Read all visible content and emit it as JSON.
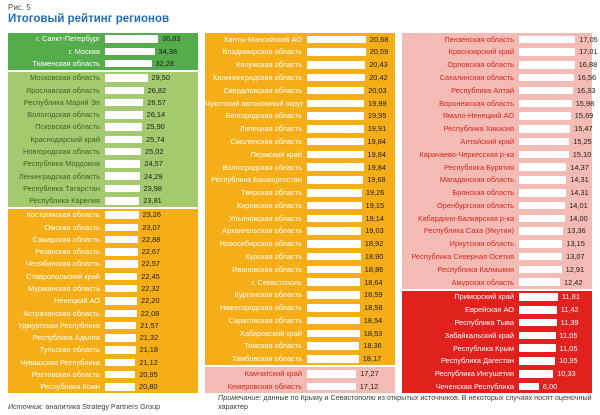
{
  "figure_label": "Рис. 5",
  "title": "Итоговый рейтинг регионов",
  "footer": {
    "source_label": "Источник:",
    "source_text": " аналитика Strategy Partners Group",
    "note_label": "Примечание:",
    "note_text": " данные по Крыму и Севастополю  из открытых источников.  В некоторых случаях  носят оценочный характер"
  },
  "colors": {
    "title_blue": "#1e6fb8",
    "tier_dark_green": "#55ac4b",
    "tier_light_green": "#a4ca70",
    "tier_orange": "#f5ae17",
    "tier_pink": "#f4bab4",
    "tier_red": "#e0211e",
    "bar_fill": "#ffffff",
    "pink_label_red": "#d5281e"
  },
  "chart_data": {
    "type": "bar",
    "title": "Итоговый рейтинг регионов",
    "orientation": "horizontal",
    "value_format": "comma-decimal",
    "tiers_legend": [
      "dark-green",
      "light-green",
      "orange",
      "pink",
      "red"
    ],
    "columns": [
      {
        "label_width": 92,
        "bar_scale": 1.44,
        "groups": [
          {
            "tier": "dark-green",
            "rows": [
              {
                "name": "г. Санкт-Петербург",
                "value": "36,83"
              },
              {
                "name": "г. Москва",
                "value": "34,38"
              },
              {
                "name": "Тюменская область",
                "value": "32,28"
              }
            ]
          },
          {
            "tier": "light-green",
            "rows": [
              {
                "name": "Московская область",
                "value": "29,50"
              },
              {
                "name": "Ярославская область",
                "value": "26,82"
              },
              {
                "name": "Республика Марий Эл",
                "value": "26,57"
              },
              {
                "name": "Вологодская область",
                "value": "26,14"
              },
              {
                "name": "Псковская область",
                "value": "25,90"
              },
              {
                "name": "Краснодарский край",
                "value": "25,74"
              },
              {
                "name": "Новгородская область",
                "value": "25,02"
              },
              {
                "name": "Республика Мордовия",
                "value": "24,57"
              },
              {
                "name": "Ленинградская область",
                "value": "24,29"
              },
              {
                "name": "Республика Татарстан",
                "value": "23,98"
              },
              {
                "name": "Республика Карелия",
                "value": "23,81"
              }
            ]
          },
          {
            "tier": "orange",
            "rows": [
              {
                "name": "Костромская область",
                "value": "23,26"
              },
              {
                "name": "Омская область",
                "value": "23,07"
              },
              {
                "name": "Самарская область",
                "value": "22,88"
              },
              {
                "name": "Рязанская область",
                "value": "22,67"
              },
              {
                "name": "Челябинская область",
                "value": "22,57"
              },
              {
                "name": "Ставропольский край",
                "value": "22,45"
              },
              {
                "name": "Мурманская область",
                "value": "22,32"
              },
              {
                "name": "Ненецкий АО",
                "value": "22,20"
              },
              {
                "name": "Астраханская область",
                "value": "22,08"
              },
              {
                "name": "Удмуртская Республика",
                "value": "21,57"
              },
              {
                "name": "Республика Адыгея",
                "value": "21,32"
              },
              {
                "name": "Тульская область",
                "value": "21,18"
              },
              {
                "name": "Чувашская Республика",
                "value": "21,12"
              },
              {
                "name": "Ростовская область",
                "value": "20,95"
              },
              {
                "name": "Республика Коми",
                "value": "20,80"
              }
            ]
          }
        ]
      },
      {
        "label_width": 97,
        "bar_scale": 2.85,
        "groups": [
          {
            "tier": "orange",
            "rows": [
              {
                "name": "Ханты-Мансийский АО",
                "value": "20,68"
              },
              {
                "name": "Владимирская область",
                "value": "20,59"
              },
              {
                "name": "Калужская область",
                "value": "20,43"
              },
              {
                "name": "Калининградская область",
                "value": "20,42"
              },
              {
                "name": "Свердловская область",
                "value": "20,03"
              },
              {
                "name": "Чукотский автономный округ",
                "value": "19,99"
              },
              {
                "name": "Белгородская область",
                "value": "19,95"
              },
              {
                "name": "Липецкая область",
                "value": "19,91"
              },
              {
                "name": "Смоленская область",
                "value": "19,84"
              },
              {
                "name": "Пермский край",
                "value": "19,84"
              },
              {
                "name": "Волгоградская область",
                "value": "19,84"
              },
              {
                "name": "Республика Башкортостан",
                "value": "19,68"
              },
              {
                "name": "Тверская область",
                "value": "19,26"
              },
              {
                "name": "Кировская область",
                "value": "19,15"
              },
              {
                "name": "Ульяновская область",
                "value": "19,14"
              },
              {
                "name": "Архангельская область",
                "value": "19,03"
              },
              {
                "name": "Новосибирская область",
                "value": "18,92"
              },
              {
                "name": "Курская область",
                "value": "18,90"
              },
              {
                "name": "Ивановская область",
                "value": "18,86"
              },
              {
                "name": "г. Севастополь",
                "value": "18,64"
              },
              {
                "name": "Курганская область",
                "value": "18,59"
              },
              {
                "name": "Нижегородская область",
                "value": "18,58"
              },
              {
                "name": "Саратовская область",
                "value": "18,54"
              },
              {
                "name": "Хабаровский край",
                "value": "18,53"
              },
              {
                "name": "Томская область",
                "value": "18,36"
              },
              {
                "name": "Тамбовская область",
                "value": "18,17"
              }
            ]
          },
          {
            "tier": "pink",
            "rows": [
              {
                "name": "Камчатский край",
                "value": "17,27"
              },
              {
                "name": "Кемеровская область",
                "value": "17,12"
              }
            ]
          }
        ]
      },
      {
        "label_width": 112,
        "bar_scale": 3.3,
        "groups": [
          {
            "tier": "pink",
            "rows": [
              {
                "name": "Пензенская область",
                "value": "17,05"
              },
              {
                "name": "Красноярский край",
                "value": "17,01"
              },
              {
                "name": "Орловская область",
                "value": "16,88"
              },
              {
                "name": "Сахалинская область",
                "value": "16,56"
              },
              {
                "name": "Республика Алтай",
                "value": "16,33"
              },
              {
                "name": "Воронежская область",
                "value": "15,98"
              },
              {
                "name": "Ямало-Ненецкий АО",
                "value": "15,69"
              },
              {
                "name": "Республика Хакасия",
                "value": "15,47"
              },
              {
                "name": "Алтайский край",
                "value": "15,25"
              },
              {
                "name": "Карачаево-Черкесская р-ка",
                "value": "15,10"
              },
              {
                "name": "Республика Бурятия",
                "value": "14,37"
              },
              {
                "name": "Магаданская область",
                "value": "14,31"
              },
              {
                "name": "Брянская область",
                "value": "14,31"
              },
              {
                "name": "Оренбургская область",
                "value": "14,01"
              },
              {
                "name": "Кабардино-Балкарская р-ка",
                "value": "14,00"
              },
              {
                "name": "Республика Саха (Якутия)",
                "value": "13,36"
              },
              {
                "name": "Иркутская область",
                "value": "13,15"
              },
              {
                "name": "Республика Северная Осетия",
                "value": "13,07"
              },
              {
                "name": "Республика Калмыкия",
                "value": "12,91"
              },
              {
                "name": "Амурская область",
                "value": "12,42"
              }
            ]
          },
          {
            "tier": "red",
            "rows": [
              {
                "name": "Приморский край",
                "value": "11,81"
              },
              {
                "name": "Еврейская АО",
                "value": "11,42"
              },
              {
                "name": "Республика Тыва",
                "value": "11,39"
              },
              {
                "name": "Забайкальский край",
                "value": "11,05"
              },
              {
                "name": "Республика Крым",
                "value": "11,05"
              },
              {
                "name": "Республика Дагестан",
                "value": "10,95"
              },
              {
                "name": "Республика Ингушетия",
                "value": "10,33"
              },
              {
                "name": "Чеченская Республика",
                "value": "6,00"
              }
            ]
          }
        ]
      }
    ]
  }
}
